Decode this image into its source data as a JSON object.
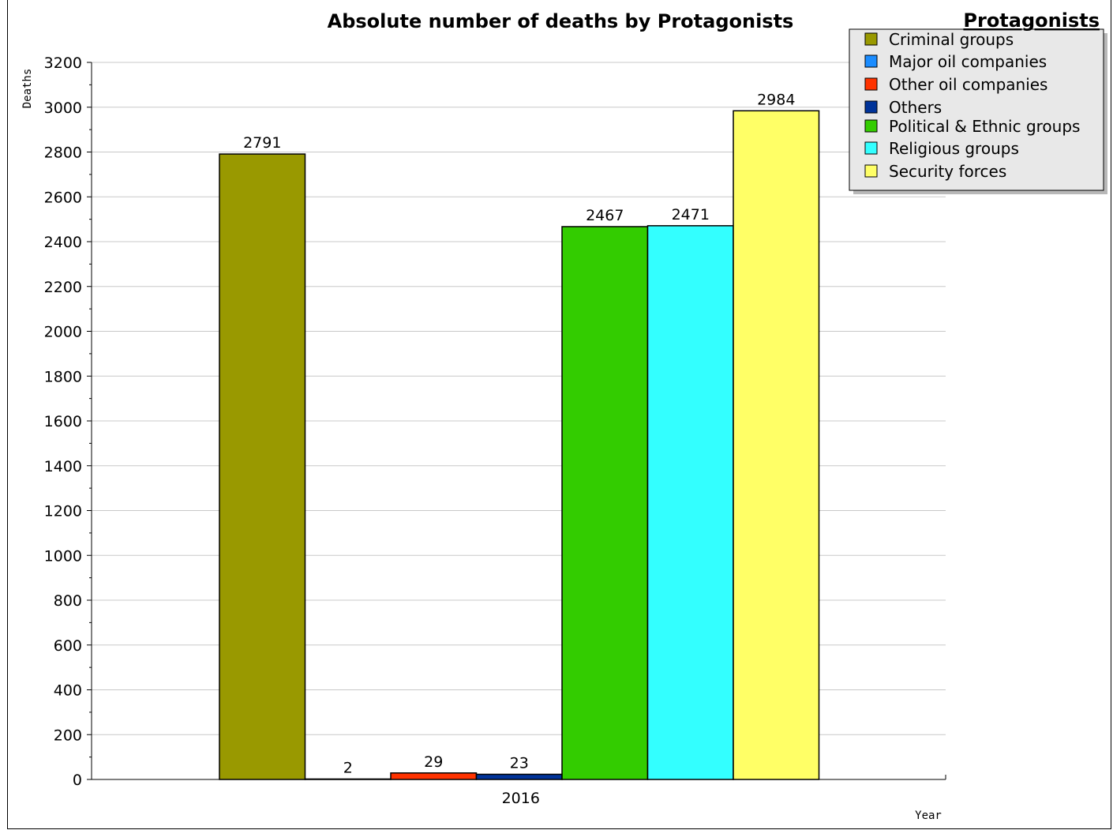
{
  "chart_data": {
    "type": "bar",
    "title": "Absolute number of deaths by Protagonists",
    "xlabel": "Year",
    "ylabel": "Deaths",
    "categories": [
      "2016"
    ],
    "ylim": [
      0,
      3200
    ],
    "yticks": [
      0,
      200,
      400,
      600,
      800,
      1000,
      1200,
      1400,
      1600,
      1800,
      2000,
      2200,
      2400,
      2600,
      2800,
      3000,
      3200
    ],
    "grid": true,
    "legend": {
      "title": "Protagonists",
      "placement": "top-right"
    },
    "series": [
      {
        "name": "Criminal groups",
        "values": [
          2791
        ],
        "color": "#999900"
      },
      {
        "name": "Major oil companies",
        "values": [
          2
        ],
        "color": "#1a8cff"
      },
      {
        "name": "Other oil companies",
        "values": [
          29
        ],
        "color": "#ff3300"
      },
      {
        "name": "Others",
        "values": [
          23
        ],
        "color": "#003399"
      },
      {
        "name": "Political & Ethnic groups",
        "values": [
          2467
        ],
        "color": "#33cc00"
      },
      {
        "name": "Religious groups",
        "values": [
          2471
        ],
        "color": "#33ffff"
      },
      {
        "name": "Security forces",
        "values": [
          2984
        ],
        "color": "#ffff66"
      }
    ]
  }
}
